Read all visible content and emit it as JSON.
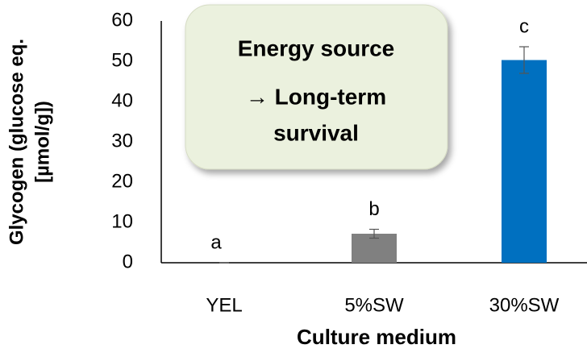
{
  "chart_data": {
    "type": "bar",
    "xlabel": "Culture medium",
    "ylabel": [
      "Glycogen (glucose eq.",
      "[µmol/g])"
    ],
    "categories": [
      "YEL",
      "5%SW",
      "30%SW"
    ],
    "values": [
      0,
      7.2,
      50.3
    ],
    "errors": [
      0,
      1.1,
      3.3
    ],
    "colors": [
      "#808080",
      "#808080",
      "#0070c0"
    ],
    "significance_letters": [
      "a",
      "b",
      "c"
    ],
    "annotation": [
      "Energy source",
      "→ Long-term",
      "survival"
    ],
    "ylim": [
      0,
      60
    ],
    "yticks": [
      0,
      10,
      20,
      30,
      40,
      50,
      60
    ],
    "grid": false
  }
}
